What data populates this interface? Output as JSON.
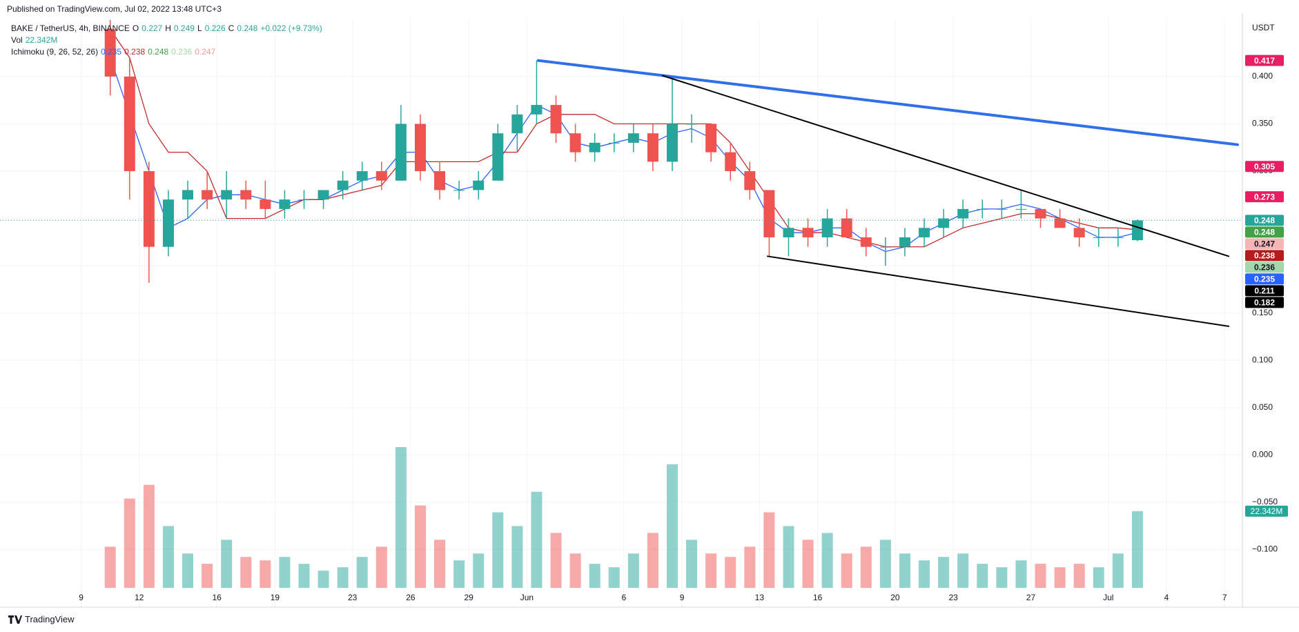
{
  "published": "Published on TradingView.com, Jul 02, 2022 13:48 UTC+3",
  "footer": "TradingView",
  "chart_data": {
    "type": "candlestick",
    "title": "BAKE / TetherUS, 4h, BINANCE",
    "legend_ohlc": [
      {
        "label": "O",
        "value": 0.227
      },
      {
        "label": "H",
        "value": 0.249
      },
      {
        "label": "L",
        "value": 0.226
      },
      {
        "label": "C",
        "value": 0.248
      }
    ],
    "change": "+0.022 (+9.73%)",
    "volume_legend": {
      "label": "Vol",
      "value": 22342000,
      "value_label": "22.342M"
    },
    "ichimoku": {
      "label": "Ichimoku (9, 26, 52, 26)",
      "values": [
        0.235,
        0.238,
        0.248,
        0.236,
        0.247
      ],
      "colors": [
        "#2962ff",
        "#c62828",
        "#43a047",
        "#a5d6a7",
        "#ef9a9a"
      ]
    },
    "currency": "USDT",
    "up_color": "#26a69a",
    "down_color": "#ef5350",
    "x": [
      "2022-05-10",
      "2022-05-11",
      "2022-05-12",
      "2022-05-13",
      "2022-05-14",
      "2022-05-15",
      "2022-05-16",
      "2022-05-17",
      "2022-05-18",
      "2022-05-19",
      "2022-05-20",
      "2022-05-21",
      "2022-05-22",
      "2022-05-23",
      "2022-05-24",
      "2022-05-25",
      "2022-05-26",
      "2022-05-27",
      "2022-05-28",
      "2022-05-29",
      "2022-05-30",
      "2022-05-31",
      "2022-06-01",
      "2022-06-02",
      "2022-06-03",
      "2022-06-04",
      "2022-06-05",
      "2022-06-06",
      "2022-06-07",
      "2022-06-08",
      "2022-06-09",
      "2022-06-10",
      "2022-06-11",
      "2022-06-12",
      "2022-06-13",
      "2022-06-14",
      "2022-06-15",
      "2022-06-16",
      "2022-06-17",
      "2022-06-18",
      "2022-06-19",
      "2022-06-20",
      "2022-06-21",
      "2022-06-22",
      "2022-06-23",
      "2022-06-24",
      "2022-06-25",
      "2022-06-26",
      "2022-06-27",
      "2022-06-28",
      "2022-06-29",
      "2022-06-30",
      "2022-07-01",
      "2022-07-02"
    ],
    "open": [
      0.45,
      0.4,
      0.3,
      0.22,
      0.27,
      0.28,
      0.27,
      0.28,
      0.27,
      0.26,
      0.27,
      0.27,
      0.28,
      0.29,
      0.3,
      0.29,
      0.35,
      0.3,
      0.28,
      0.28,
      0.29,
      0.34,
      0.36,
      0.37,
      0.34,
      0.32,
      0.33,
      0.33,
      0.34,
      0.31,
      0.35,
      0.35,
      0.32,
      0.3,
      0.28,
      0.23,
      0.24,
      0.23,
      0.25,
      0.23,
      0.22,
      0.22,
      0.23,
      0.24,
      0.25,
      0.26,
      0.26,
      0.26,
      0.26,
      0.25,
      0.24,
      0.23,
      0.23,
      0.227
    ],
    "high": [
      0.46,
      0.42,
      0.31,
      0.28,
      0.29,
      0.3,
      0.3,
      0.29,
      0.29,
      0.28,
      0.28,
      0.28,
      0.3,
      0.31,
      0.31,
      0.37,
      0.36,
      0.31,
      0.29,
      0.3,
      0.35,
      0.37,
      0.417,
      0.38,
      0.35,
      0.34,
      0.34,
      0.35,
      0.35,
      0.4,
      0.36,
      0.35,
      0.33,
      0.31,
      0.28,
      0.25,
      0.25,
      0.26,
      0.26,
      0.24,
      0.23,
      0.24,
      0.25,
      0.26,
      0.27,
      0.27,
      0.27,
      0.28,
      0.26,
      0.26,
      0.25,
      0.24,
      0.24,
      0.249
    ],
    "low": [
      0.38,
      0.27,
      0.182,
      0.21,
      0.25,
      0.26,
      0.25,
      0.26,
      0.25,
      0.25,
      0.26,
      0.26,
      0.27,
      0.28,
      0.28,
      0.29,
      0.29,
      0.27,
      0.27,
      0.27,
      0.29,
      0.32,
      0.35,
      0.33,
      0.31,
      0.31,
      0.32,
      0.32,
      0.3,
      0.3,
      0.33,
      0.31,
      0.29,
      0.27,
      0.21,
      0.21,
      0.22,
      0.22,
      0.23,
      0.21,
      0.2,
      0.21,
      0.22,
      0.23,
      0.24,
      0.25,
      0.25,
      0.25,
      0.24,
      0.24,
      0.22,
      0.22,
      0.22,
      0.226
    ],
    "close": [
      0.4,
      0.3,
      0.22,
      0.27,
      0.28,
      0.27,
      0.28,
      0.27,
      0.26,
      0.27,
      0.27,
      0.28,
      0.29,
      0.3,
      0.29,
      0.35,
      0.3,
      0.28,
      0.28,
      0.29,
      0.34,
      0.36,
      0.37,
      0.34,
      0.32,
      0.33,
      0.33,
      0.34,
      0.31,
      0.35,
      0.35,
      0.32,
      0.3,
      0.28,
      0.23,
      0.24,
      0.23,
      0.25,
      0.23,
      0.22,
      0.22,
      0.23,
      0.24,
      0.25,
      0.26,
      0.26,
      0.26,
      0.26,
      0.25,
      0.24,
      0.23,
      0.23,
      0.23,
      0.248
    ],
    "volume": {
      "values": [
        12000000,
        26000000,
        30000000,
        18000000,
        10000000,
        7000000,
        14000000,
        9000000,
        8000000,
        9000000,
        7000000,
        5000000,
        6000000,
        9000000,
        12000000,
        41000000,
        24000000,
        14000000,
        8000000,
        10000000,
        22000000,
        18000000,
        28000000,
        16000000,
        10000000,
        7000000,
        6000000,
        10000000,
        16000000,
        36000000,
        14000000,
        10000000,
        9000000,
        12000000,
        22000000,
        18000000,
        14000000,
        16000000,
        10000000,
        12000000,
        14000000,
        10000000,
        8000000,
        9000000,
        10000000,
        7000000,
        6000000,
        8000000,
        7000000,
        6000000,
        7000000,
        6000000,
        10000000,
        22342000
      ],
      "lim": [
        0,
        41000000
      ]
    },
    "tenkan": {
      "color": "#2962ff",
      "values": [
        0.42,
        0.36,
        0.3,
        0.24,
        0.25,
        0.27,
        0.275,
        0.275,
        0.27,
        0.265,
        0.27,
        0.27,
        0.28,
        0.29,
        0.295,
        0.32,
        0.32,
        0.29,
        0.28,
        0.285,
        0.31,
        0.34,
        0.37,
        0.36,
        0.33,
        0.325,
        0.33,
        0.335,
        0.33,
        0.34,
        0.345,
        0.335,
        0.31,
        0.29,
        0.25,
        0.235,
        0.235,
        0.24,
        0.24,
        0.225,
        0.215,
        0.22,
        0.235,
        0.245,
        0.255,
        0.26,
        0.26,
        0.265,
        0.26,
        0.25,
        0.24,
        0.23,
        0.23,
        0.235
      ]
    },
    "kijun": {
      "color": "#c62828",
      "values": [
        0.45,
        0.42,
        0.35,
        0.32,
        0.32,
        0.3,
        0.25,
        0.25,
        0.25,
        0.26,
        0.27,
        0.27,
        0.275,
        0.28,
        0.285,
        0.31,
        0.31,
        0.31,
        0.31,
        0.31,
        0.32,
        0.32,
        0.35,
        0.36,
        0.36,
        0.36,
        0.35,
        0.35,
        0.35,
        0.35,
        0.35,
        0.35,
        0.33,
        0.3,
        0.27,
        0.24,
        0.235,
        0.235,
        0.23,
        0.225,
        0.22,
        0.22,
        0.22,
        0.23,
        0.24,
        0.245,
        0.25,
        0.255,
        0.255,
        0.25,
        0.245,
        0.24,
        0.24,
        0.238
      ]
    },
    "drawings": [
      {
        "color": "#2f6fea",
        "width": 4,
        "points": [
          {
            "x": "2022-06-01T14:00",
            "y": 0.417
          },
          {
            "x": "2022-07-07T16:00",
            "y": 0.328
          }
        ]
      },
      {
        "color": "#000000",
        "width": 2,
        "points": [
          {
            "x": "2022-06-08T00:00",
            "y": 0.401
          },
          {
            "x": "2022-07-07T05:00",
            "y": 0.21
          }
        ]
      },
      {
        "color": "#000000",
        "width": 2,
        "points": [
          {
            "x": "2022-06-13T10:00",
            "y": 0.21
          },
          {
            "x": "2022-07-07T05:00",
            "y": 0.136
          }
        ]
      }
    ],
    "xlim": [
      "2022-05-04T19:30",
      "2022-07-07T22:00"
    ],
    "xticks": [
      {
        "value": "2022-05-09",
        "label": "9"
      },
      {
        "value": "2022-05-12",
        "label": "12"
      },
      {
        "value": "2022-05-16",
        "label": "16"
      },
      {
        "value": "2022-05-19",
        "label": "19"
      },
      {
        "value": "2022-05-23",
        "label": "23"
      },
      {
        "value": "2022-05-26",
        "label": "26"
      },
      {
        "value": "2022-05-29",
        "label": "29"
      },
      {
        "value": "2022-06-01",
        "label": "Jun"
      },
      {
        "value": "2022-06-06",
        "label": "6"
      },
      {
        "value": "2022-06-09",
        "label": "9"
      },
      {
        "value": "2022-06-13",
        "label": "13"
      },
      {
        "value": "2022-06-16",
        "label": "16"
      },
      {
        "value": "2022-06-20",
        "label": "20"
      },
      {
        "value": "2022-06-23",
        "label": "23"
      },
      {
        "value": "2022-06-27",
        "label": "27"
      },
      {
        "value": "2022-07-01",
        "label": "Jul"
      },
      {
        "value": "2022-07-04",
        "label": "4"
      },
      {
        "value": "2022-07-07",
        "label": "7"
      }
    ],
    "ylim": [
      -0.161,
      0.462
    ],
    "yticks": [
      {
        "value": 0.4,
        "label": "0.400"
      },
      {
        "value": 0.35,
        "label": "0.350"
      },
      {
        "value": 0.3,
        "label": "0.300"
      },
      {
        "value": 0.25,
        "label": "0.250"
      },
      {
        "value": 0.2,
        "label": "0.200"
      },
      {
        "value": 0.15,
        "label": "0.150"
      },
      {
        "value": 0.1,
        "label": "0.100"
      },
      {
        "value": 0.05,
        "label": "0.050"
      },
      {
        "value": 0,
        "label": "0.000"
      },
      {
        "value": -0.05,
        "label": "−0.050"
      },
      {
        "value": -0.1,
        "label": "−0.100"
      }
    ],
    "grid": true,
    "price_tags": [
      {
        "value": 0.417,
        "color": "#e91e63"
      },
      {
        "value": 0.305,
        "color": "#e91e63"
      },
      {
        "value": 0.273,
        "color": "#e91e63"
      },
      {
        "value": 0.248,
        "color": "#26a69a"
      },
      {
        "value": 0.248,
        "color": "#43a047"
      },
      {
        "value": 0.247,
        "color": "#f4b6b4"
      },
      {
        "value": 0.238,
        "color": "#b71c1c"
      },
      {
        "value": 0.236,
        "color": "#a5d6a7"
      },
      {
        "value": 0.235,
        "color": "#2962ff"
      },
      {
        "value": 0.211,
        "color": "#000000"
      },
      {
        "value": 0.182,
        "color": "#000000"
      }
    ]
  }
}
